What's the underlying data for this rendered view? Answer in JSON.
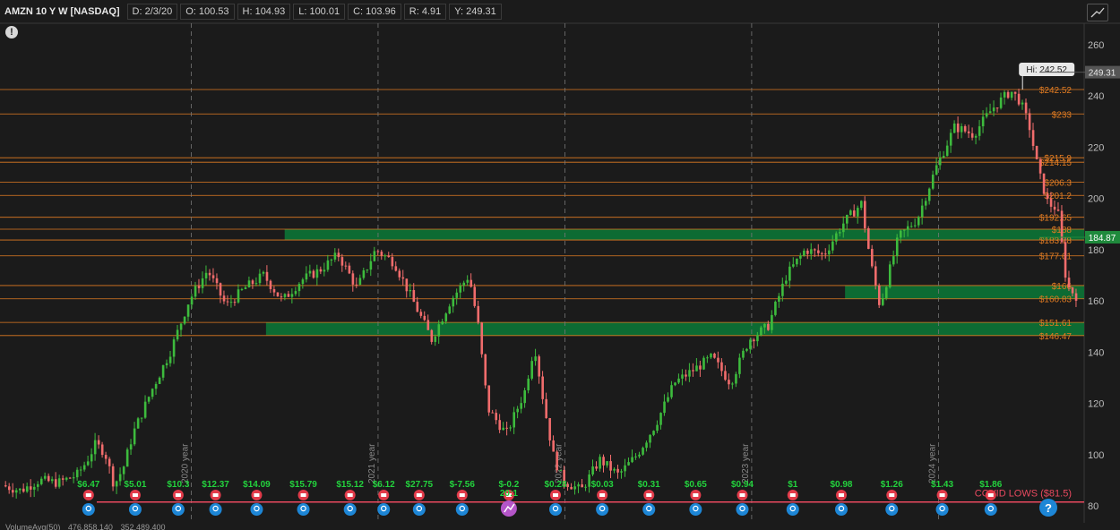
{
  "header": {
    "symbol": "AMZN 10 Y W [NASDAQ]",
    "date": "D: 2/3/20",
    "open": "O: 100.53",
    "high": "H: 104.93",
    "low": "L: 100.01",
    "close": "C: 103.96",
    "range": "R: 4.91",
    "y": "Y: 249.31"
  },
  "info_icon": "!",
  "footer": {
    "label": "VolumeAvg(50)",
    "value1": "476,858,140",
    "value2": "352,489,400"
  },
  "colors": {
    "background": "#1b1b1b",
    "up_candle": "#3dbb3d",
    "down_candle": "#f06c6c",
    "level_line": "#e07b22",
    "zone": "#0d6b33",
    "dividend": "#23d23d",
    "event_icon": "#1d86d6"
  },
  "chart_data": {
    "type": "candlestick",
    "title": "AMZN 10 Y W [NASDAQ]",
    "ylim": [
      80,
      265
    ],
    "y_ticks": [
      80,
      100,
      120,
      140,
      160,
      180,
      200,
      220,
      240,
      260
    ],
    "x_ticks": [
      "2020 year",
      "2021 year",
      "2022 year",
      "2023 year",
      "2024 year"
    ],
    "year_boundaries": [
      2020.0,
      2021.0,
      2022.0,
      2023.0,
      2024.0
    ],
    "grid": false,
    "price_bubbles": [
      {
        "text": "249.31",
        "value": 249.31,
        "style": "gray"
      },
      {
        "text": "184.87",
        "value": 184.87,
        "style": "green"
      }
    ],
    "hi_label": {
      "text": "Hi: 242.52",
      "value": 242.52,
      "date": 2024.45
    },
    "levels": [
      {
        "label": "$242.52",
        "value": 242.52,
        "color": "#e07b22"
      },
      {
        "label": "$233",
        "value": 233,
        "color": "#e07b22"
      },
      {
        "label": "$215.9",
        "value": 215.9,
        "color": "#e07b22"
      },
      {
        "label": "$214.15",
        "value": 214.15,
        "color": "#e07b22"
      },
      {
        "label": "$206.3",
        "value": 206.3,
        "color": "#e07b22"
      },
      {
        "label": "$201.2",
        "value": 201.2,
        "color": "#e07b22"
      },
      {
        "label": "$192.65",
        "value": 192.65,
        "color": "#e07b22"
      },
      {
        "label": "$188",
        "value": 188,
        "color": "#e07b22"
      },
      {
        "label": "$183.78",
        "value": 183.78,
        "color": "#e07b22"
      },
      {
        "label": "$177.61",
        "value": 177.61,
        "color": "#e07b22"
      },
      {
        "label": "$166",
        "value": 166,
        "color": "#e07b22"
      },
      {
        "label": "$160.83",
        "value": 160.83,
        "color": "#e07b22"
      },
      {
        "label": "$151.61",
        "value": 151.61,
        "color": "#e07b22"
      },
      {
        "label": "$146.47",
        "value": 146.47,
        "color": "#e07b22"
      }
    ],
    "zones": [
      {
        "from": 183.78,
        "to": 188,
        "start": 2020.5
      },
      {
        "from": 160.83,
        "to": 166,
        "start": 2023.5
      },
      {
        "from": 146.47,
        "to": 151.61,
        "start": 2020.4
      }
    ],
    "dividends": [
      {
        "label": "$6.47",
        "date": 2019.45
      },
      {
        "label": "$5.01",
        "date": 2019.7
      },
      {
        "label": "$10.3",
        "date": 2019.93
      },
      {
        "label": "$12.37",
        "date": 2020.13
      },
      {
        "label": "$14.09",
        "date": 2020.35
      },
      {
        "label": "$15.79",
        "date": 2020.6
      },
      {
        "label": "$15.12",
        "date": 2020.85
      },
      {
        "label": "$6.12",
        "date": 2021.03
      },
      {
        "label": "$27.75",
        "date": 2021.22
      },
      {
        "label": "$-7.56",
        "date": 2021.45
      },
      {
        "label": "$-0.2",
        "date": 2021.7
      },
      {
        "label": "$0.28",
        "date": 2021.95
      },
      {
        "label": "$0.03",
        "date": 2022.2
      },
      {
        "label": "$0.31",
        "date": 2022.45
      },
      {
        "label": "$0.65",
        "date": 2022.7
      },
      {
        "label": "$0.94",
        "date": 2022.95
      },
      {
        "label": "$1",
        "date": 2023.22
      },
      {
        "label": "$0.98",
        "date": 2023.48
      },
      {
        "label": "$1.26",
        "date": 2023.75
      },
      {
        "label": "$1.43",
        "date": 2024.02
      },
      {
        "label": "$1.86",
        "date": 2024.28
      }
    ],
    "split_label": {
      "text": "20:1",
      "date": 2021.7
    },
    "covid_label": "COVID LOWS ($81.5)",
    "covid_value": 81.5,
    "help_icon": "?",
    "price_path": [
      [
        2019.0,
        88
      ],
      [
        2019.1,
        86
      ],
      [
        2019.2,
        90
      ],
      [
        2019.3,
        89
      ],
      [
        2019.4,
        92
      ],
      [
        2019.45,
        97
      ],
      [
        2019.5,
        104
      ],
      [
        2019.55,
        101
      ],
      [
        2019.6,
        88
      ],
      [
        2019.65,
        95
      ],
      [
        2019.7,
        108
      ],
      [
        2019.8,
        125
      ],
      [
        2019.9,
        140
      ],
      [
        2020.0,
        160
      ],
      [
        2020.1,
        172
      ],
      [
        2020.2,
        158
      ],
      [
        2020.3,
        165
      ],
      [
        2020.4,
        170
      ],
      [
        2020.5,
        160
      ],
      [
        2020.6,
        168
      ],
      [
        2020.7,
        172
      ],
      [
        2020.8,
        178
      ],
      [
        2020.9,
        165
      ],
      [
        2021.0,
        180
      ],
      [
        2021.1,
        175
      ],
      [
        2021.2,
        160
      ],
      [
        2021.3,
        145
      ],
      [
        2021.4,
        160
      ],
      [
        2021.5,
        170
      ],
      [
        2021.55,
        150
      ],
      [
        2021.6,
        118
      ],
      [
        2021.7,
        108
      ],
      [
        2021.8,
        125
      ],
      [
        2021.85,
        143
      ],
      [
        2021.9,
        120
      ],
      [
        2021.95,
        100
      ],
      [
        2022.0,
        90
      ],
      [
        2022.1,
        86
      ],
      [
        2022.2,
        98
      ],
      [
        2022.3,
        92
      ],
      [
        2022.4,
        100
      ],
      [
        2022.5,
        112
      ],
      [
        2022.6,
        128
      ],
      [
        2022.7,
        133
      ],
      [
        2022.8,
        138
      ],
      [
        2022.9,
        128
      ],
      [
        2023.0,
        145
      ],
      [
        2023.1,
        150
      ],
      [
        2023.2,
        170
      ],
      [
        2023.3,
        180
      ],
      [
        2023.4,
        178
      ],
      [
        2023.5,
        190
      ],
      [
        2023.6,
        198
      ],
      [
        2023.65,
        175
      ],
      [
        2023.7,
        158
      ],
      [
        2023.8,
        185
      ],
      [
        2023.9,
        192
      ],
      [
        2024.0,
        212
      ],
      [
        2024.1,
        228
      ],
      [
        2024.2,
        225
      ],
      [
        2024.3,
        235
      ],
      [
        2024.4,
        242
      ],
      [
        2024.45,
        238
      ],
      [
        2024.5,
        228
      ],
      [
        2024.55,
        210
      ],
      [
        2024.6,
        198
      ],
      [
        2024.65,
        196
      ],
      [
        2024.7,
        166
      ],
      [
        2024.75,
        162
      ]
    ]
  }
}
